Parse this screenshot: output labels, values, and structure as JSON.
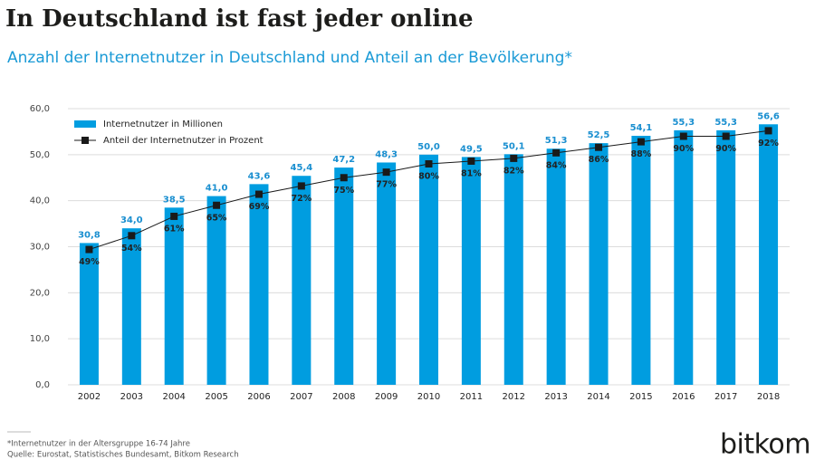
{
  "chart_data": {
    "type": "bar",
    "title": "In Deutschland ist fast jeder online",
    "subtitle": "Anzahl der Internetnutzer in Deutschland und Anteil an der Bevölkerung*",
    "categories": [
      "2002",
      "2003",
      "2004",
      "2005",
      "2006",
      "2007",
      "2008",
      "2009",
      "2010",
      "2011",
      "2012",
      "2013",
      "2014",
      "2015",
      "2016",
      "2017",
      "2018"
    ],
    "series": [
      {
        "name": "Internetnutzer in Millionen",
        "color": "#009de0",
        "values": [
          30.8,
          34,
          38.5,
          41,
          43.6,
          45.4,
          47.2,
          48.3,
          50,
          49.5,
          50.1,
          51.3,
          52.5,
          54.1,
          55.3,
          55.3,
          56.6
        ],
        "value_labels": [
          "30,8",
          "34,0",
          "38,5",
          "41,0",
          "43,6",
          "45,4",
          "47,2",
          "48,3",
          "50,0",
          "49,5",
          "50,1",
          "51,3",
          "52,5",
          "54,1",
          "55,3",
          "55,3",
          "56,6"
        ]
      },
      {
        "name": "Anteil der Internetnutzer in Prozent",
        "color": "#1a1a1a",
        "type": "line",
        "axis": "y2",
        "values": [
          49,
          54,
          61,
          65,
          69,
          72,
          75,
          77,
          80,
          81,
          82,
          84,
          86,
          88,
          90,
          90,
          92
        ],
        "value_labels": [
          "49%",
          "54%",
          "61%",
          "65%",
          "69%",
          "72%",
          "75%",
          "77%",
          "80%",
          "81%",
          "82%",
          "84%",
          "86%",
          "88%",
          "90%",
          "90%",
          "92%"
        ]
      }
    ],
    "ylim": [
      0,
      60
    ],
    "yticks": [
      {
        "value": 0,
        "label": "0,0"
      },
      {
        "value": 10,
        "label": "10,0"
      },
      {
        "value": 20,
        "label": "20,0"
      },
      {
        "value": 30,
        "label": "30,0"
      },
      {
        "value": 40,
        "label": "40,0"
      },
      {
        "value": 50,
        "label": "50,0"
      },
      {
        "value": 60,
        "label": "60,0"
      }
    ],
    "y2lim": [
      0,
      100
    ],
    "grid": true,
    "legend": "top-left",
    "footnote": "*Internetnutzer in der Altersgruppe 16-74 Jahre",
    "source": "Quelle: Eurostat, Statistisches Bundesamt, Bitkom Research",
    "logo": "bitkom"
  }
}
